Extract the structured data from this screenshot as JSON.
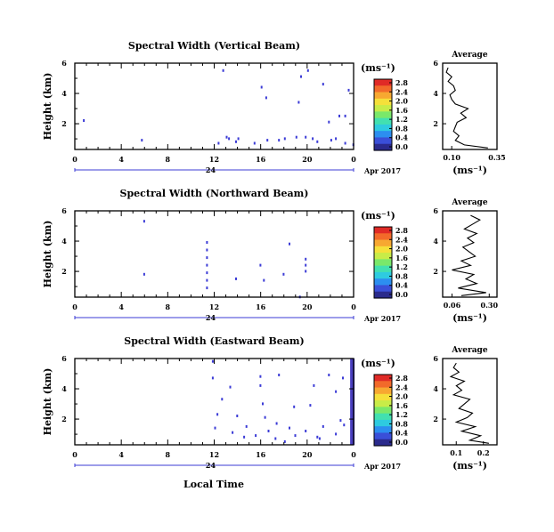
{
  "figure": {
    "xlabel": "Local Time",
    "date_label": "Apr 2017"
  },
  "chart_data": [
    {
      "type": "heatmap",
      "title": "Spectral Width (Vertical Beam)",
      "ylabel": "Height (km)",
      "xlabel": "Local Time",
      "x_ticks": [
        "0",
        "4",
        "8",
        "12",
        "16",
        "20",
        "0"
      ],
      "x_range_hours": [
        0,
        24
      ],
      "day_label": "24",
      "y_ticks": [
        "6",
        "4",
        "2"
      ],
      "y_range_km": [
        0.3,
        6.0
      ],
      "colorbar": {
        "unit": "(ms⁻¹)",
        "ticks": [
          "0.0",
          "0.4",
          "0.8",
          "1.2",
          "1.6",
          "2.0",
          "2.4",
          "2.8"
        ]
      },
      "cells": [
        [
          0.7,
          2.3
        ],
        [
          5.7,
          1.0
        ],
        [
          12.7,
          5.6
        ],
        [
          13.0,
          1.2
        ],
        [
          13.2,
          1.1
        ],
        [
          14.0,
          1.1
        ],
        [
          15.4,
          0.8
        ],
        [
          16.4,
          3.8
        ],
        [
          16.0,
          4.5
        ],
        [
          16.5,
          1.0
        ],
        [
          17.5,
          1.0
        ],
        [
          18.0,
          1.1
        ],
        [
          19.0,
          1.2
        ],
        [
          19.2,
          3.5
        ],
        [
          19.4,
          5.2
        ],
        [
          19.8,
          1.2
        ],
        [
          20.4,
          1.1
        ],
        [
          20.8,
          0.9
        ],
        [
          21.3,
          4.7
        ],
        [
          21.8,
          2.2
        ],
        [
          22.0,
          1.0
        ],
        [
          22.4,
          1.1
        ],
        [
          22.7,
          2.6
        ],
        [
          23.2,
          2.6
        ],
        [
          23.5,
          4.3
        ],
        [
          23.2,
          0.8
        ],
        [
          23.9,
          0.7
        ],
        [
          12.3,
          0.8
        ],
        [
          13.8,
          0.9
        ],
        [
          20.0,
          5.6
        ]
      ],
      "average": {
        "title": "Average",
        "xlabel": "(ms⁻¹)",
        "x_ticks": [
          "0.10",
          "0.35"
        ],
        "xlim": [
          0.05,
          0.35
        ],
        "heights": [
          0.4,
          0.6,
          0.9,
          1.2,
          1.5,
          1.8,
          2.1,
          2.4,
          2.7,
          3.0,
          3.3,
          3.6,
          3.9,
          4.2,
          4.5,
          4.8,
          5.1,
          5.4,
          5.7
        ],
        "values": [
          0.3,
          0.17,
          0.12,
          0.14,
          0.11,
          0.12,
          0.13,
          0.18,
          0.15,
          0.19,
          0.12,
          0.1,
          0.09,
          0.12,
          0.11,
          0.08,
          0.1,
          0.07,
          0.08
        ]
      }
    },
    {
      "type": "heatmap",
      "title": "Spectral Width (Northward Beam)",
      "ylabel": "Height (km)",
      "xlabel": "Local Time",
      "x_ticks": [
        "0",
        "4",
        "8",
        "12",
        "16",
        "20",
        "0"
      ],
      "x_range_hours": [
        0,
        24
      ],
      "day_label": "24",
      "y_ticks": [
        "6",
        "4",
        "2"
      ],
      "y_range_km": [
        0.3,
        6.0
      ],
      "colorbar": {
        "unit": "(ms⁻¹)",
        "ticks": [
          "0.0",
          "0.4",
          "0.8",
          "1.2",
          "1.6",
          "2.0",
          "2.4",
          "2.8"
        ]
      },
      "cells": [
        [
          5.9,
          5.4
        ],
        [
          5.9,
          1.9
        ],
        [
          11.3,
          4.0
        ],
        [
          11.3,
          3.5
        ],
        [
          11.3,
          3.0
        ],
        [
          11.3,
          2.5
        ],
        [
          11.3,
          2.0
        ],
        [
          11.3,
          1.5
        ],
        [
          11.3,
          1.0
        ],
        [
          13.8,
          1.6
        ],
        [
          15.9,
          2.5
        ],
        [
          16.2,
          1.5
        ],
        [
          17.9,
          1.9
        ],
        [
          18.4,
          3.9
        ],
        [
          19.3,
          0.4
        ],
        [
          19.8,
          2.9
        ],
        [
          19.8,
          2.5
        ],
        [
          19.8,
          2.1
        ]
      ],
      "average": {
        "title": "Average",
        "xlabel": "(ms⁻¹)",
        "x_ticks": [
          "0.06",
          "0.30"
        ],
        "xlim": [
          0.0,
          0.35
        ],
        "heights": [
          0.4,
          0.6,
          0.9,
          1.2,
          1.5,
          1.8,
          2.1,
          2.4,
          2.7,
          3.0,
          3.3,
          3.6,
          3.9,
          4.2,
          4.5,
          4.8,
          5.1,
          5.4,
          5.7
        ],
        "values": [
          0.12,
          0.28,
          0.1,
          0.22,
          0.15,
          0.2,
          0.06,
          0.18,
          0.12,
          0.21,
          0.17,
          0.13,
          0.2,
          0.16,
          0.22,
          0.14,
          0.19,
          0.24,
          0.18
        ]
      }
    },
    {
      "type": "heatmap",
      "title": "Spectral Width (Eastward Beam)",
      "ylabel": "Height (km)",
      "xlabel": "Local Time",
      "x_ticks": [
        "0",
        "4",
        "8",
        "12",
        "16",
        "20",
        "0"
      ],
      "x_range_hours": [
        0,
        24
      ],
      "day_label": "24",
      "y_ticks": [
        "6",
        "4",
        "2"
      ],
      "y_range_km": [
        0.3,
        6.0
      ],
      "colorbar": {
        "unit": "(ms⁻¹)",
        "ticks": [
          "0.0",
          "0.4",
          "0.8",
          "1.2",
          "1.6",
          "2.0",
          "2.4",
          "2.8"
        ]
      },
      "cells": [
        [
          11.8,
          5.9
        ],
        [
          11.8,
          4.8
        ],
        [
          12.0,
          1.5
        ],
        [
          12.6,
          3.4
        ],
        [
          13.3,
          4.2
        ],
        [
          13.5,
          1.2
        ],
        [
          14.5,
          0.9
        ],
        [
          15.5,
          1.0
        ],
        [
          15.9,
          4.9
        ],
        [
          15.9,
          4.3
        ],
        [
          16.1,
          3.1
        ],
        [
          16.3,
          2.2
        ],
        [
          16.6,
          1.3
        ],
        [
          17.2,
          0.8
        ],
        [
          17.3,
          1.8
        ],
        [
          17.5,
          5.0
        ],
        [
          18.0,
          0.6
        ],
        [
          18.4,
          1.5
        ],
        [
          18.8,
          2.9
        ],
        [
          19.8,
          1.3
        ],
        [
          20.2,
          3.0
        ],
        [
          20.5,
          4.3
        ],
        [
          20.8,
          0.9
        ],
        [
          21.3,
          1.6
        ],
        [
          21.8,
          5.0
        ],
        [
          22.4,
          1.1
        ],
        [
          22.8,
          2.0
        ],
        [
          23.0,
          4.8
        ],
        [
          23.1,
          1.7
        ],
        [
          22.4,
          3.9
        ],
        [
          12.2,
          2.4
        ],
        [
          13.9,
          2.3
        ],
        [
          14.7,
          1.6
        ],
        [
          18.9,
          1.0
        ],
        [
          21.0,
          0.8
        ]
      ],
      "dense_column": {
        "hour": 23.7,
        "from_km": 0.3,
        "to_km": 6.0
      },
      "average": {
        "title": "Average",
        "xlabel": "(ms⁻¹)",
        "x_ticks": [
          "0.1",
          "0.2"
        ],
        "xlim": [
          0.05,
          0.25
        ],
        "heights": [
          0.4,
          0.6,
          0.9,
          1.2,
          1.5,
          1.8,
          2.1,
          2.4,
          2.7,
          3.0,
          3.3,
          3.6,
          3.9,
          4.2,
          4.5,
          4.8,
          5.1,
          5.4,
          5.7
        ],
        "values": [
          0.22,
          0.15,
          0.19,
          0.12,
          0.17,
          0.1,
          0.14,
          0.16,
          0.11,
          0.13,
          0.15,
          0.09,
          0.12,
          0.1,
          0.13,
          0.08,
          0.11,
          0.09,
          0.1
        ]
      }
    }
  ],
  "colors": {
    "cell": "#3b3bd6",
    "axis": "#000000",
    "dense_column": "#4a3fc0",
    "colormap": [
      "#2a2a8c",
      "#3a4fd8",
      "#2c8ef0",
      "#2ecbe0",
      "#42e0b0",
      "#7ae86a",
      "#c8ec48",
      "#f5e03a",
      "#f7a831",
      "#f26a2a",
      "#e02a26"
    ]
  }
}
